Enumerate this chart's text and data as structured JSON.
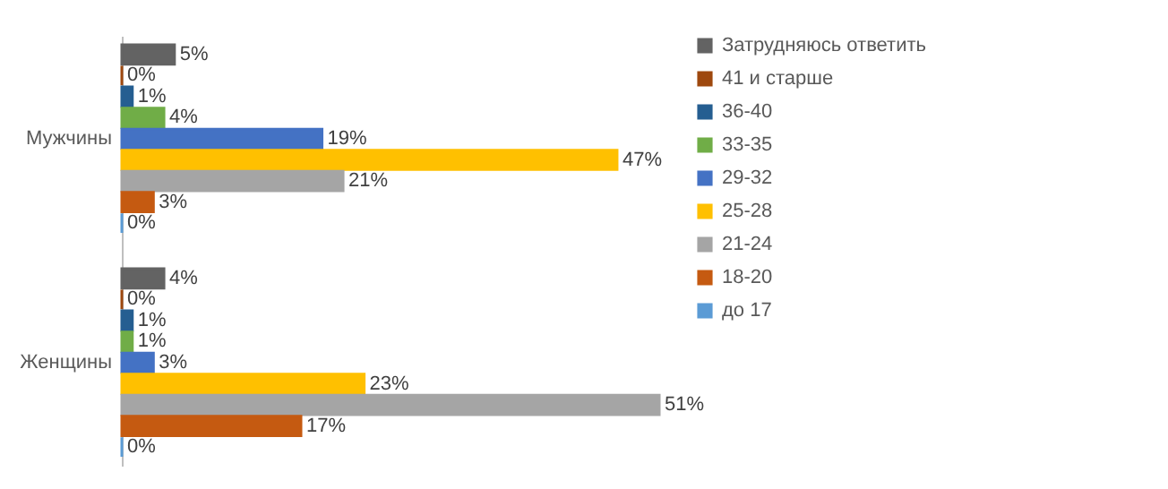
{
  "chart_data": {
    "type": "bar",
    "orientation": "horizontal",
    "categories": [
      "Мужчины",
      "Женщины"
    ],
    "legend": "right",
    "series": [
      {
        "name": "Затрудняюсь ответить",
        "color": "#636363",
        "values": [
          5,
          4
        ],
        "value_labels": [
          "5%",
          "4%"
        ]
      },
      {
        "name": "41 и старше",
        "color": "#9e480e",
        "values": [
          0,
          0
        ],
        "value_labels": [
          "0%",
          "0%"
        ]
      },
      {
        "name": "36-40",
        "color": "#255e91",
        "values": [
          1,
          1
        ],
        "value_labels": [
          "1%",
          "1%"
        ]
      },
      {
        "name": "33-35",
        "color": "#70ad47",
        "values": [
          4,
          1
        ],
        "value_labels": [
          "4%",
          "1%"
        ]
      },
      {
        "name": "29-32",
        "color": "#4472c4",
        "values": [
          19,
          3
        ],
        "value_labels": [
          "19%",
          "3%"
        ]
      },
      {
        "name": "25-28",
        "color": "#ffc000",
        "values": [
          47,
          23
        ],
        "value_labels": [
          "47%",
          "23%"
        ]
      },
      {
        "name": "21-24",
        "color": "#a5a5a5",
        "values": [
          21,
          51
        ],
        "value_labels": [
          "21%",
          "51%"
        ]
      },
      {
        "name": "18-20",
        "color": "#c55a11",
        "values": [
          3,
          17
        ],
        "value_labels": [
          "3%",
          "17%"
        ]
      },
      {
        "name": "до 17",
        "color": "#5b9bd5",
        "values": [
          0,
          0
        ],
        "value_labels": [
          "0%",
          "0%"
        ]
      }
    ]
  }
}
